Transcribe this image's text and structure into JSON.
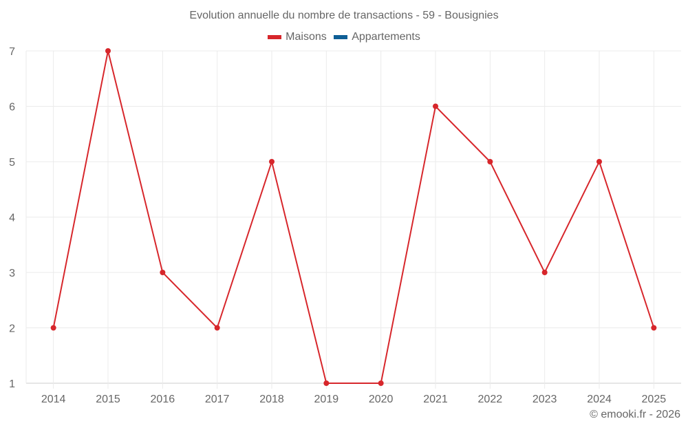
{
  "chart_data": {
    "type": "line",
    "title": "Evolution annuelle du nombre de transactions - 59 - Bousignies",
    "categories": [
      "2014",
      "2015",
      "2016",
      "2017",
      "2018",
      "2019",
      "2020",
      "2021",
      "2022",
      "2023",
      "2024",
      "2025"
    ],
    "series": [
      {
        "name": "Maisons",
        "color": "#d7262b",
        "values": [
          2,
          7,
          3,
          2,
          5,
          1,
          1,
          6,
          5,
          3,
          5,
          2
        ]
      },
      {
        "name": "Appartements",
        "color": "#0f5f96",
        "values": []
      }
    ],
    "xlabel": "",
    "ylabel": "",
    "yticks": [
      1,
      2,
      3,
      4,
      5,
      6,
      7
    ],
    "ylim": [
      1,
      7
    ],
    "grid": true,
    "legend_position": "top"
  },
  "header": {
    "title": "Evolution annuelle du nombre de transactions - 59 - Bousignies"
  },
  "legend": {
    "items": [
      {
        "label": "Maisons",
        "color": "#d7262b"
      },
      {
        "label": "Appartements",
        "color": "#0f5f96"
      }
    ]
  },
  "credit": "© emooki.fr - 2026"
}
